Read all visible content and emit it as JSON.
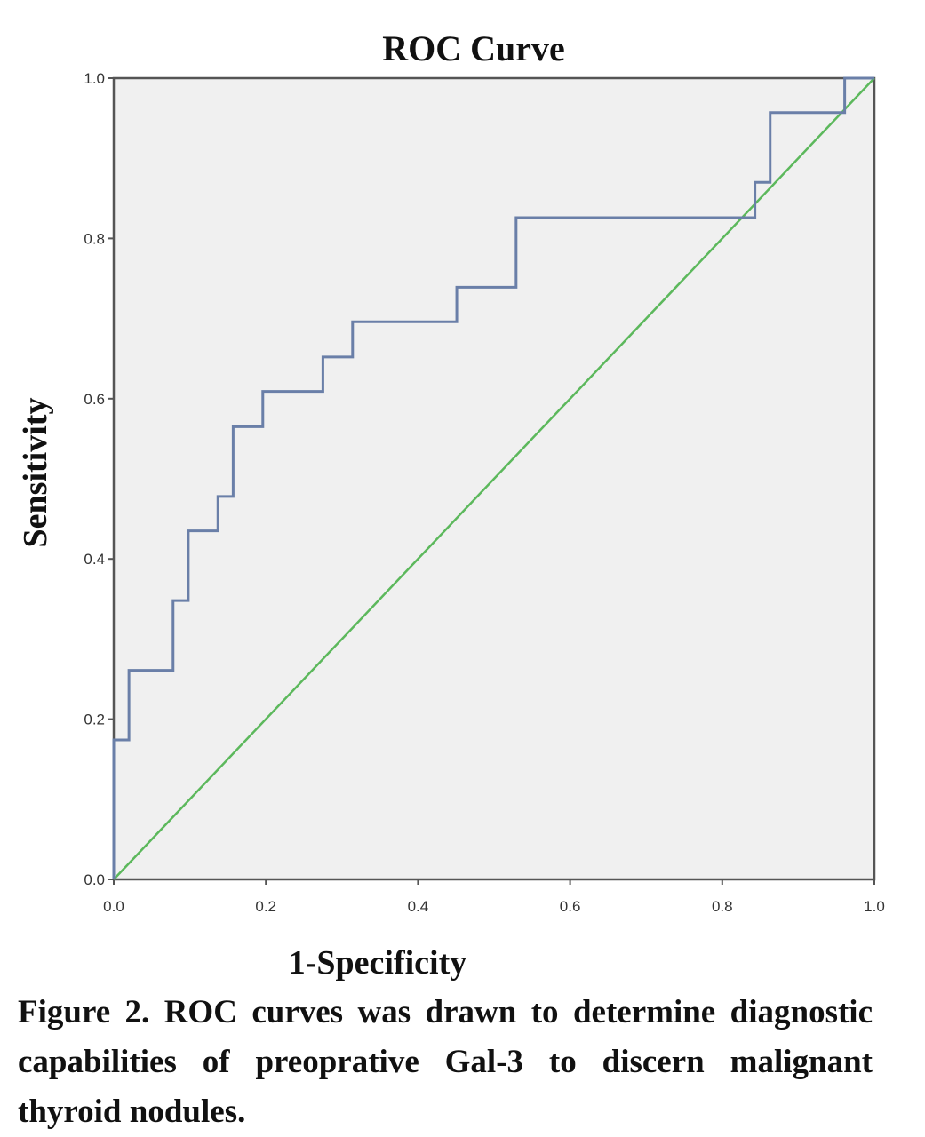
{
  "chart_data": {
    "type": "line",
    "title": "ROC Curve",
    "xlabel": "1-Specificity",
    "ylabel": "Sensitivity",
    "xlim": [
      0,
      1
    ],
    "ylim": [
      0,
      1
    ],
    "x_ticks": [
      "0.0",
      "0.2",
      "0.4",
      "0.6",
      "0.8",
      "1.0"
    ],
    "y_ticks": [
      "0.0",
      "0.2",
      "0.4",
      "0.6",
      "0.8",
      "1.0"
    ],
    "grid": false,
    "series": [
      {
        "color": "#6a7fa8",
        "points": [
          [
            0.0,
            0.0
          ],
          [
            0.0,
            0.174
          ],
          [
            0.02,
            0.174
          ],
          [
            0.02,
            0.261
          ],
          [
            0.078,
            0.261
          ],
          [
            0.078,
            0.348
          ],
          [
            0.098,
            0.348
          ],
          [
            0.098,
            0.435
          ],
          [
            0.137,
            0.435
          ],
          [
            0.137,
            0.478
          ],
          [
            0.157,
            0.478
          ],
          [
            0.157,
            0.565
          ],
          [
            0.196,
            0.565
          ],
          [
            0.196,
            0.609
          ],
          [
            0.275,
            0.609
          ],
          [
            0.275,
            0.652
          ],
          [
            0.314,
            0.652
          ],
          [
            0.314,
            0.696
          ],
          [
            0.451,
            0.696
          ],
          [
            0.451,
            0.739
          ],
          [
            0.529,
            0.739
          ],
          [
            0.529,
            0.826
          ],
          [
            0.843,
            0.826
          ],
          [
            0.843,
            0.87
          ],
          [
            0.863,
            0.87
          ],
          [
            0.863,
            0.957
          ],
          [
            0.961,
            0.957
          ],
          [
            0.961,
            1.0
          ],
          [
            1.0,
            1.0
          ]
        ]
      },
      {
        "color": "#5cb85c",
        "points": [
          [
            0,
            0
          ],
          [
            1,
            1
          ]
        ]
      }
    ]
  },
  "caption": "Figure 2. ROC curves was drawn to determine diagnostic capabilities of preoprative Gal-3 to discern malignant thyroid nodules."
}
